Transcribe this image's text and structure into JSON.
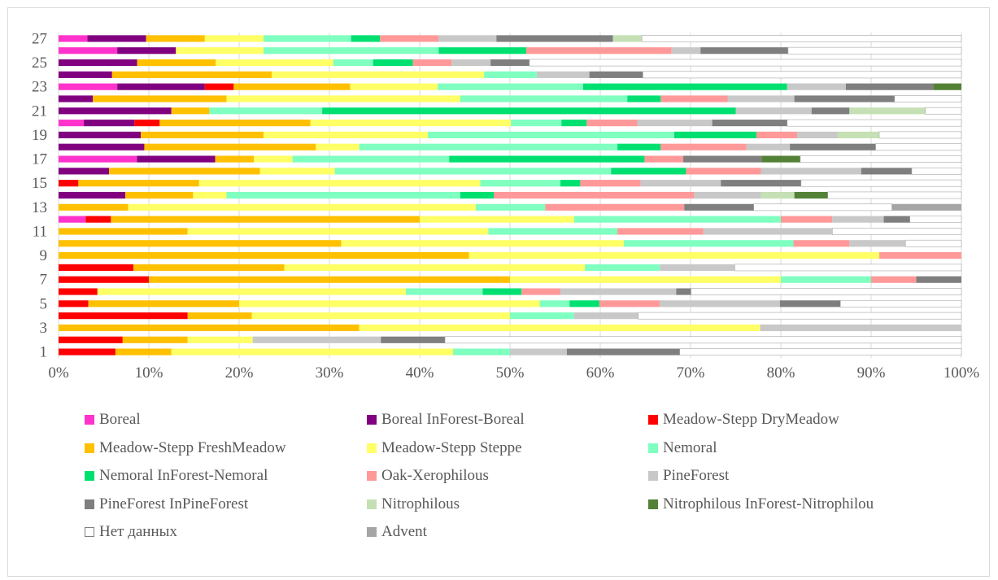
{
  "chart_data": {
    "type": "bar",
    "orientation": "horizontal",
    "stacked": "percent",
    "title": "",
    "xlabel": "",
    "ylabel": "",
    "xlim": [
      0,
      100
    ],
    "x_ticks": [
      "0%",
      "10%",
      "20%",
      "30%",
      "40%",
      "50%",
      "60%",
      "70%",
      "80%",
      "90%",
      "100%"
    ],
    "y_tick_labels": [
      "1",
      "3",
      "5",
      "7",
      "9",
      "11",
      "13",
      "15",
      "17",
      "19",
      "21",
      "23",
      "25",
      "27"
    ],
    "categories": [
      "1",
      "2",
      "3",
      "4",
      "5",
      "6",
      "7",
      "8",
      "9",
      "10",
      "11",
      "12",
      "13",
      "14",
      "15",
      "16",
      "17",
      "18",
      "19",
      "20",
      "21",
      "22",
      "23",
      "24",
      "25",
      "26",
      "27"
    ],
    "grid": true,
    "legend_position": "bottom",
    "series": [
      {
        "name": "Boreal",
        "color": "#FF33CC",
        "values": [
          0,
          0,
          0,
          0,
          0,
          0,
          0,
          0,
          0,
          0,
          0,
          3,
          0,
          0,
          0,
          0,
          8.7,
          0,
          0,
          2.8,
          0,
          0,
          6.5,
          0,
          0,
          6.5,
          3.2
        ]
      },
      {
        "name": "Boreal InForest-Boreal",
        "color": "#800080",
        "values": [
          0,
          0,
          0,
          0,
          0,
          0,
          0,
          0,
          0,
          0,
          0,
          0,
          0,
          7.4,
          0,
          5.6,
          8.7,
          9.5,
          9.1,
          5.6,
          12.5,
          3.8,
          9.7,
          6.3,
          8.7,
          6.5,
          6.5
        ]
      },
      {
        "name": "Meadow-Stepp DryMeadow",
        "color": "#FF0000",
        "values": [
          6.3,
          7.1,
          0,
          14.3,
          3.3,
          4.2,
          10,
          8.3,
          0,
          0,
          0,
          2.8,
          0,
          0,
          2.1,
          0,
          0,
          0,
          0,
          2.8,
          0,
          0,
          3.2,
          0,
          0,
          0,
          0
        ]
      },
      {
        "name": "Meadow-Stepp FreshMeadow",
        "color": "#FFC000",
        "values": [
          6.2,
          7.2,
          33.3,
          7.1,
          16.7,
          0,
          40,
          16.7,
          45.5,
          31.3,
          14.3,
          34.2,
          7.7,
          7.5,
          12.8,
          16.7,
          4.3,
          19.0,
          13.6,
          16.7,
          4.2,
          14.8,
          12.9,
          18.8,
          8.7,
          0,
          6.5
        ]
      },
      {
        "name": "Meadow-Stepp Steppe",
        "color": "#FFFF66",
        "values": [
          31.2,
          7.2,
          44.4,
          28.6,
          33.3,
          33.3,
          30,
          33.3,
          45.5,
          31.3,
          33.3,
          17.1,
          38.5,
          3.7,
          29.8,
          8.3,
          4.3,
          4.8,
          18.2,
          22.2,
          0,
          25.9,
          9.7,
          25.0,
          13.0,
          9.7,
          6.5
        ]
      },
      {
        "name": "Nemoral",
        "color": "#7FFFC0",
        "values": [
          6.3,
          0,
          0,
          7.1,
          3.3,
          8.3,
          10,
          8.3,
          0,
          18.8,
          14.3,
          22.9,
          7.7,
          25.9,
          8.5,
          30.6,
          17.4,
          28.6,
          27.3,
          5.6,
          12.5,
          18.5,
          16.1,
          6.2,
          4.4,
          19.4,
          9.7
        ]
      },
      {
        "name": "Nemoral InForest-Nemoral",
        "color": "#00E070",
        "values": [
          0,
          0,
          0,
          0,
          3.3,
          4.2,
          0,
          0,
          0,
          0,
          0,
          0,
          0,
          3.7,
          2.1,
          8.3,
          21.7,
          4.8,
          9.1,
          2.8,
          45.8,
          3.7,
          22.6,
          0,
          4.4,
          9.7,
          3.2
        ]
      },
      {
        "name": "Oak-Xerophilous",
        "color": "#FF9999",
        "values": [
          0,
          0,
          0,
          0,
          6.7,
          4.2,
          5,
          0,
          9.1,
          6.2,
          9.5,
          5.7,
          15.4,
          22.2,
          6.4,
          8.3,
          4.3,
          9.5,
          4.5,
          5.6,
          0,
          7.4,
          0,
          0,
          4.3,
          16.1,
          6.5
        ]
      },
      {
        "name": "PineForest",
        "color": "#C8C8C8",
        "values": [
          6.3,
          14.2,
          22.3,
          7.1,
          13.3,
          12.5,
          0,
          8.3,
          0,
          6.2,
          14.3,
          5.7,
          0,
          7.4,
          8.5,
          11.1,
          0,
          4.8,
          4.5,
          8.3,
          8.4,
          7.4,
          6.5,
          6.2,
          4.3,
          3.2,
          6.4
        ]
      },
      {
        "name": "PineForest InPineForest",
        "color": "#7F7F7F",
        "values": [
          12.5,
          7.1,
          0,
          0,
          6.7,
          1.6,
          5,
          0,
          0,
          0,
          0,
          2.9,
          7.7,
          0,
          8.5,
          5.6,
          8.7,
          9.5,
          0,
          8.3,
          4.2,
          11.1,
          9.7,
          6.3,
          4.3,
          9.7,
          12.9
        ]
      },
      {
        "name": "Nitrophilous",
        "color": "#C5E0B4",
        "values": [
          0,
          0,
          0,
          0,
          0,
          0,
          0,
          0,
          0,
          0,
          0,
          0,
          0,
          3.7,
          0,
          0,
          0,
          0,
          4.6,
          0,
          8.4,
          0,
          0,
          0,
          0,
          0,
          3.2
        ]
      },
      {
        "name": "Nitrophilous InForest-Nitrophilou",
        "color": "#538135",
        "values": [
          0,
          0,
          0,
          0,
          0,
          0,
          0,
          0,
          0,
          0,
          0,
          0,
          0,
          3.7,
          0,
          0,
          4.3,
          0,
          0,
          0,
          0,
          0,
          3.1,
          0,
          0,
          0,
          0
        ]
      },
      {
        "name": "Нет данных",
        "color": "#FFFFFF",
        "values": [
          31.2,
          57.2,
          0,
          35.8,
          13.4,
          29.2,
          0,
          25.1,
          0,
          6.2,
          14.3,
          5.7,
          15.3,
          14.8,
          17.0,
          5.5,
          17.9,
          9.5,
          9.1,
          19.3,
          4.0,
          7.4,
          0,
          37.5,
          47.8,
          19.2,
          35.4
        ]
      },
      {
        "name": "Advent",
        "color": "#A5A5A5",
        "values": [
          0,
          0,
          0,
          0,
          0,
          0,
          0,
          0,
          0,
          0,
          0,
          0,
          7.7,
          0,
          0,
          0,
          0,
          0,
          0,
          0,
          0,
          0,
          0,
          0,
          0,
          0,
          0
        ]
      }
    ]
  }
}
